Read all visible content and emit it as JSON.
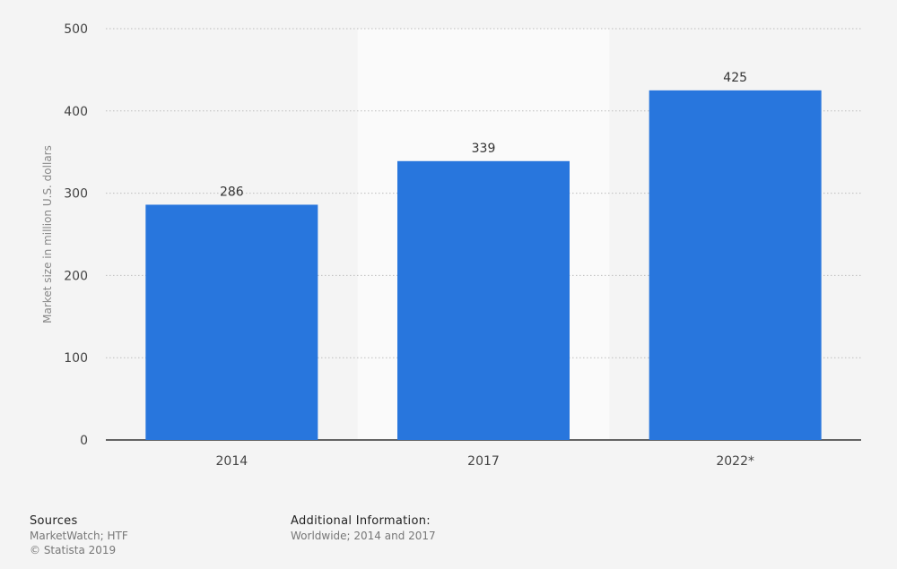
{
  "chart_data": {
    "type": "bar",
    "categories": [
      "2014",
      "2017",
      "2022*"
    ],
    "values": [
      286,
      339,
      425
    ],
    "data_labels": [
      "286",
      "339",
      "425"
    ],
    "ylabel": "Market size in million U.S. dollars",
    "ylim": [
      0,
      500
    ],
    "yticks": [
      0,
      100,
      200,
      300,
      400,
      500
    ],
    "grid": true,
    "highlighted_category": "2017",
    "bar_color": "#2876dd"
  },
  "footer": {
    "sources_heading": "Sources",
    "sources_lines": [
      "MarketWatch; HTF",
      "© Statista 2019"
    ],
    "additional_heading": "Additional Information:",
    "additional_lines": [
      "Worldwide; 2014 and 2017"
    ]
  }
}
